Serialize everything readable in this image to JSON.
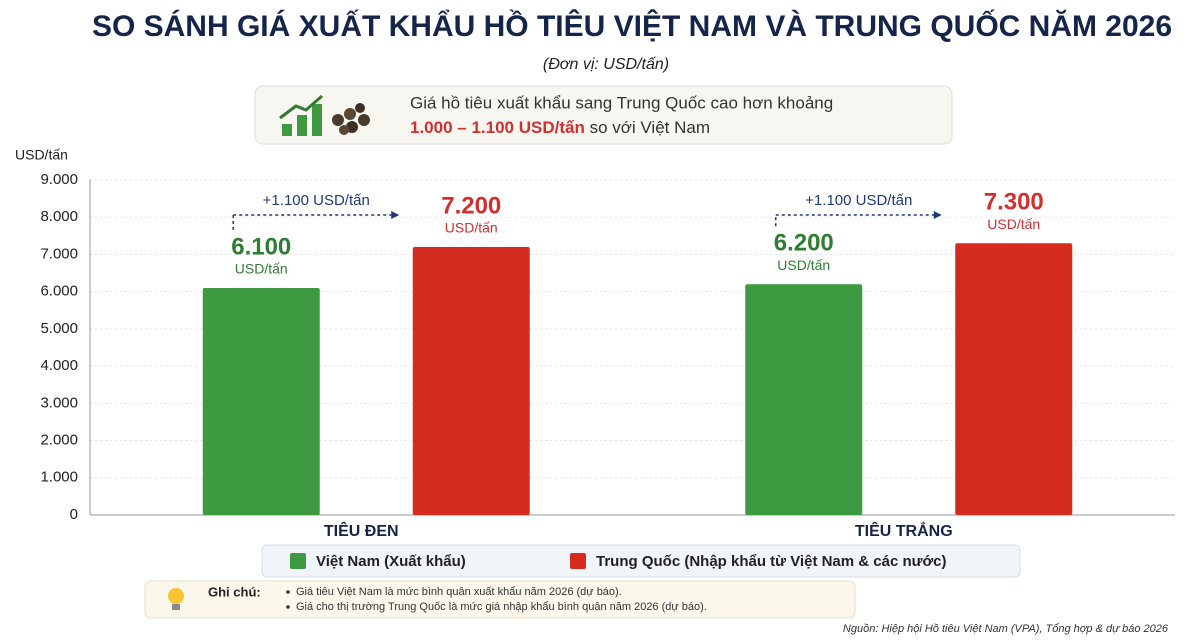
{
  "chart_data": {
    "type": "bar",
    "title": "SO SÁNH GIÁ XUẤT KHẨU HỒ TIÊU VIỆT NAM VÀ TRUNG QUỐC NĂM 2026",
    "subtitle": "(Đơn vị: USD/tấn)",
    "highlight": {
      "text_before": "Giá hồ tiêu xuất khẩu sang Trung Quốc cao hơn khoảng",
      "emphasis": "1.000 – 1.100 USD/tấn",
      "text_after": "so với Việt Nam"
    },
    "y_axis_label": "USD/tấn",
    "categories": [
      "TIÊU ĐEN",
      "TIÊU TRẮNG"
    ],
    "series": [
      {
        "name": "Việt Nam (Xuất khẩu)",
        "color": "#3d9a40",
        "label_color": "#2e7d32",
        "values": [
          6100,
          6200
        ],
        "value_labels": [
          "6.100",
          "6.200"
        ],
        "value_unit": "USD/tấn"
      },
      {
        "name": "Trung Quốc (Nhập khẩu từ Việt Nam & các nước)",
        "color": "#d52b1e",
        "label_color": "#d32f2f",
        "values": [
          7200,
          7300
        ],
        "value_labels": [
          "7.200",
          "7.300"
        ],
        "value_unit": "USD/tấn"
      }
    ],
    "differences": [
      "+1.100 USD/tấn",
      "+1.100 USD/tấn"
    ],
    "ylim": [
      0,
      9000
    ],
    "yticks": [
      0,
      {
        "value": 1000,
        "label": "1.000"
      },
      {
        "value": 2000,
        "label": "2.000"
      },
      {
        "value": 3000,
        "label": "3.000"
      },
      {
        "value": 4000,
        "label": "4.000"
      },
      {
        "value": 5000,
        "label": "5.000"
      },
      {
        "value": 6000,
        "label": "6.000"
      },
      {
        "value": 7000,
        "label": "7.000"
      },
      {
        "value": 8000,
        "label": "8.000"
      },
      {
        "value": 9000,
        "label": "9.000"
      }
    ],
    "grid": true,
    "notes": {
      "title": "Ghi chú:",
      "items": [
        "Giá tiêu Việt Nam là mức bình quân xuất khẩu năm 2026 (dự báo).",
        "Giá cho thị trường Trung Quốc là mức giá nhập khẩu bình quân năm 2026 (dự báo)."
      ]
    },
    "source": "Nguồn: Hiệp hội Hồ tiêu Việt Nam (VPA), Tổng hợp & dự báo 2026"
  }
}
